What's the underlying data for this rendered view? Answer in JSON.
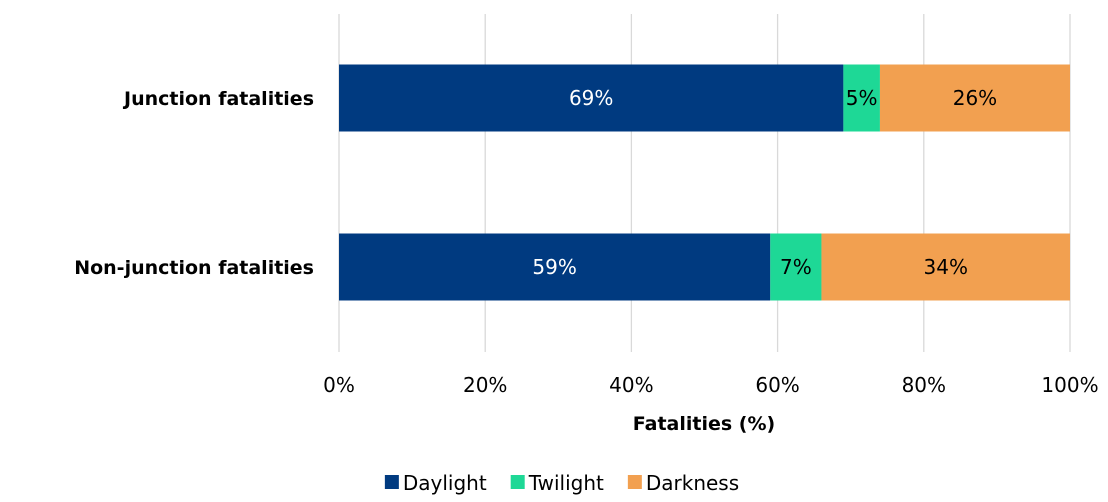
{
  "chart_data": {
    "type": "bar",
    "orientation": "horizontal",
    "stacked": true,
    "categories": [
      "Junction fatalities",
      "Non-junction fatalities"
    ],
    "series": [
      {
        "name": "Daylight",
        "values": [
          69,
          59
        ],
        "labels": [
          "69%",
          "59%"
        ],
        "color": "#003A80",
        "label_color": "#ffffff"
      },
      {
        "name": "Twilight",
        "values": [
          5,
          7
        ],
        "labels": [
          "5%",
          "7%"
        ],
        "color": "#1ED896",
        "label_color": "#000000"
      },
      {
        "name": "Darkness",
        "values": [
          26,
          34
        ],
        "labels": [
          "26%",
          "34%"
        ],
        "color": "#F2A050",
        "label_color": "#000000"
      }
    ],
    "xlabel": "Fatalities (%)",
    "xlim": [
      0,
      100
    ],
    "xticks": [
      0,
      20,
      40,
      60,
      80,
      100
    ],
    "xtick_labels": [
      "0%",
      "20%",
      "40%",
      "60%",
      "80%",
      "100%"
    ],
    "grid": "vertical",
    "legend_position": "bottom"
  }
}
